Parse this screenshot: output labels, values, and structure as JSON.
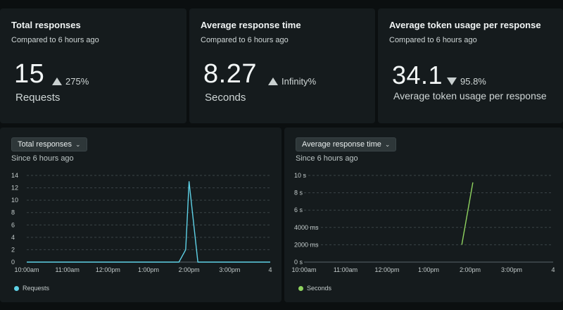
{
  "kpis": [
    {
      "title": "Total responses",
      "subtitle": "Compared to 6 hours ago",
      "value": "15",
      "delta": "275%",
      "direction": "up",
      "unit": "Requests"
    },
    {
      "title": "Average response time",
      "subtitle": "Compared to 6 hours ago",
      "value": "8.27",
      "delta": "Infinity%",
      "direction": "up",
      "unit": "Seconds"
    },
    {
      "title": "Average token usage per response",
      "subtitle": "Compared to 6 hours ago",
      "value": "34.1",
      "delta": "95.8%",
      "direction": "down",
      "unit": "Average token usage per response"
    }
  ],
  "charts": [
    {
      "dropdown": "Total responses",
      "since": "Since 6 hours ago",
      "legend": "Requests",
      "color": "#5ed1e6"
    },
    {
      "dropdown": "Average response time",
      "since": "Since 6 hours ago",
      "legend": "Seconds",
      "color": "#8fd35f"
    }
  ],
  "chart_data": [
    {
      "type": "line",
      "x_ticks": [
        "10:00am",
        "11:00am",
        "12:00pm",
        "1:00pm",
        "2:00pm",
        "3:00pm",
        "4"
      ],
      "y_ticks": [
        "14",
        "12",
        "10",
        "8",
        "6",
        "4",
        "2",
        "0"
      ],
      "ylim": [
        0,
        14
      ],
      "grid": true,
      "series": [
        {
          "name": "Requests",
          "x": [
            "10:00am",
            "1:45pm",
            "1:55pm",
            "2:00pm",
            "2:13pm",
            "2:20pm",
            "4:00pm"
          ],
          "values": [
            0,
            0,
            2,
            13,
            0,
            0,
            0
          ]
        }
      ]
    },
    {
      "type": "line",
      "x_ticks": [
        "10:00am",
        "11:00am",
        "12:00pm",
        "1:00pm",
        "2:00pm",
        "3:00pm",
        "4"
      ],
      "y_ticks": [
        "10 s",
        "8 s",
        "6 s",
        "4000 ms",
        "2000 ms",
        "0 s"
      ],
      "ylim": [
        0,
        10
      ],
      "ylabel": "",
      "grid": true,
      "series": [
        {
          "name": "Seconds",
          "x": [
            "1:48pm",
            "2:04pm"
          ],
          "values": [
            2,
            9.2
          ]
        }
      ]
    }
  ]
}
